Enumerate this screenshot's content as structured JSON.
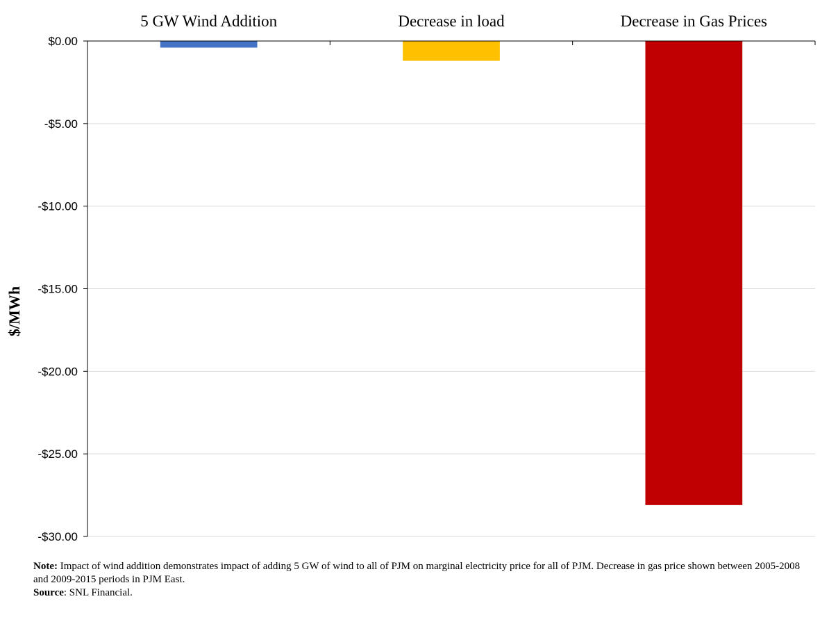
{
  "chart_data": {
    "type": "bar",
    "categories": [
      "5 GW Wind Addition",
      "Decrease in load",
      "Decrease in Gas Prices"
    ],
    "values": [
      -0.4,
      -1.2,
      -28.1
    ],
    "colors": [
      "#4472C4",
      "#FFC000",
      "#C00000"
    ],
    "ylabel": "$/MWh",
    "ylim": [
      -30,
      0
    ],
    "yticks": [
      0,
      -5,
      -10,
      -15,
      -20,
      -25,
      -30
    ],
    "ytick_labels": [
      "$0.00",
      "-$5.00",
      "-$10.00",
      "-$15.00",
      "-$20.00",
      "-$25.00",
      "-$30.00"
    ],
    "grid": true,
    "category_labels_position": "top"
  },
  "notes": {
    "note_label": "Note:",
    "note_text": " Impact of wind addition demonstrates impact of adding 5 GW of wind to all of PJM on marginal electricity price for all of PJM. Decrease in gas price shown between 2005-2008 and 2009-2015 periods in PJM East.",
    "source_label": "Source",
    "source_text": ": SNL Financial."
  }
}
